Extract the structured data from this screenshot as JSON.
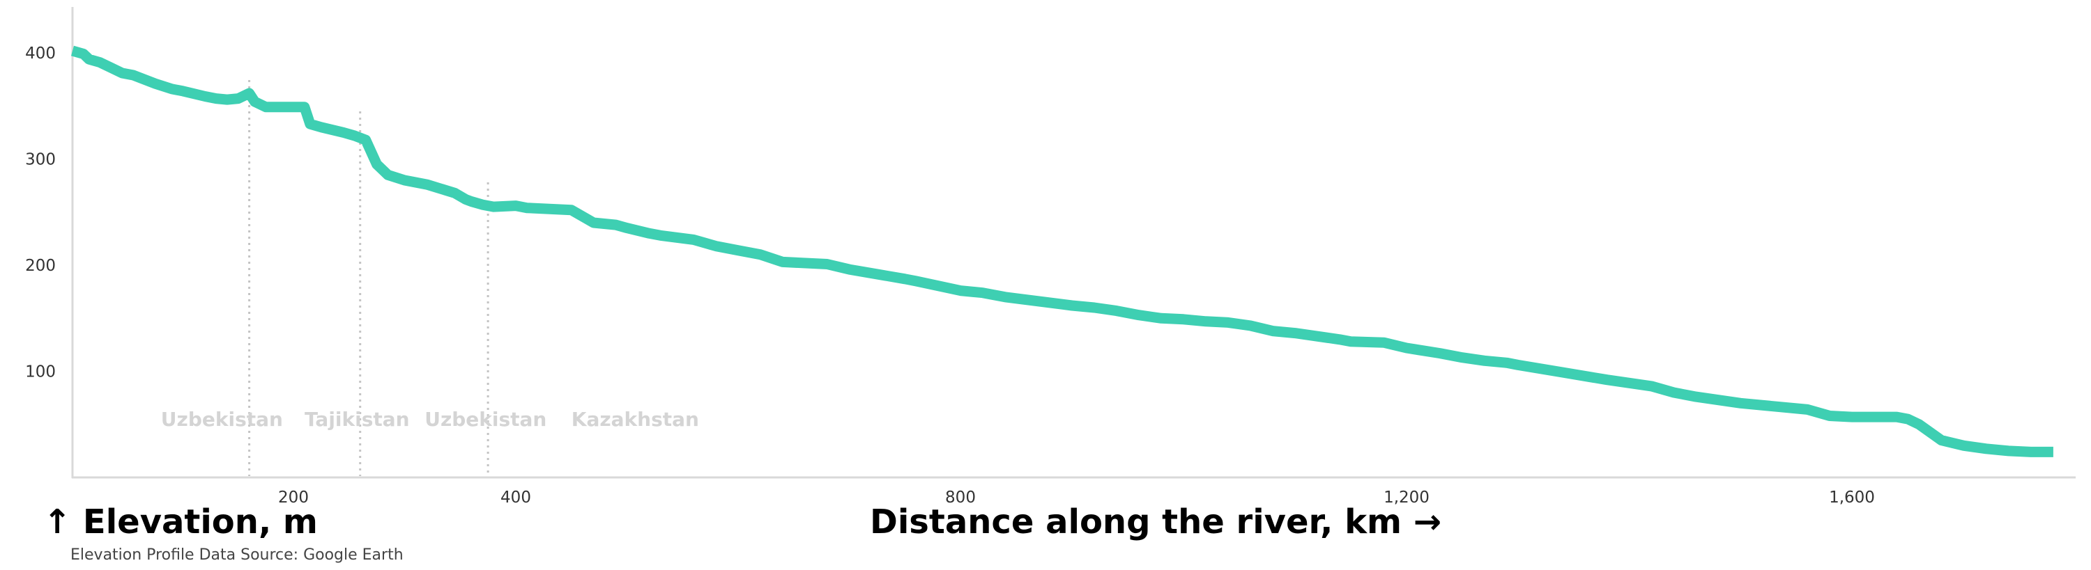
{
  "chart_data": {
    "type": "line",
    "xlabel": "Distance along the river, km →",
    "ylabel": "↑ Elevation, m",
    "source": "Elevation Profile Data Source: Google Earth",
    "xlim": [
      0,
      1800
    ],
    "ylim": [
      0,
      410
    ],
    "xticks": [
      {
        "value": 200,
        "label": "200"
      },
      {
        "value": 400,
        "label": "400"
      },
      {
        "value": 800,
        "label": "800"
      },
      {
        "value": 1200,
        "label": "1,200"
      },
      {
        "value": 1600,
        "label": "1,600"
      }
    ],
    "yticks": [
      {
        "value": 100,
        "label": "100"
      },
      {
        "value": 200,
        "label": "200"
      },
      {
        "value": 300,
        "label": "300"
      },
      {
        "value": 400,
        "label": "400"
      }
    ],
    "boundaries": [
      160,
      260,
      375
    ],
    "regions": [
      {
        "label": "Uzbekistan",
        "x": 80
      },
      {
        "label": "Tajikistan",
        "x": 210
      },
      {
        "label": "Uzbekistan",
        "x": 318
      },
      {
        "label": "Kazakhstan",
        "x": 450
      }
    ],
    "grid": false,
    "line_color": "#3ecfb2",
    "series": [
      {
        "x": [
          0,
          10,
          15,
          25,
          35,
          45,
          55,
          75,
          90,
          100,
          120,
          130,
          140,
          150,
          160,
          165,
          175,
          200,
          210,
          215,
          225,
          245,
          255,
          265,
          275,
          285,
          300,
          320,
          345,
          355,
          360,
          370,
          380,
          400,
          410,
          450,
          470,
          490,
          500,
          520,
          530,
          560,
          580,
          600,
          620,
          640,
          680,
          700,
          750,
          760,
          800,
          820,
          840,
          900,
          920,
          940,
          960,
          980,
          1000,
          1020,
          1040,
          1060,
          1080,
          1100,
          1140,
          1150,
          1180,
          1200,
          1230,
          1250,
          1270,
          1290,
          1300,
          1340,
          1380,
          1420,
          1440,
          1460,
          1500,
          1560,
          1580,
          1600,
          1620,
          1640,
          1650,
          1660,
          1680,
          1700,
          1720,
          1740,
          1760,
          1780
        ],
        "values": [
          402,
          399,
          394,
          391,
          386,
          381,
          379,
          371,
          366,
          364,
          359,
          357,
          356,
          357,
          362,
          354,
          349,
          349,
          349,
          333,
          330,
          325,
          322,
          318,
          295,
          285,
          280,
          276,
          268,
          262,
          260,
          257,
          255,
          256,
          254,
          252,
          240,
          238,
          235,
          230,
          228,
          224,
          218,
          214,
          210,
          203,
          201,
          196,
          187,
          185,
          176,
          174,
          170,
          162,
          160,
          157,
          153,
          150,
          149,
          147,
          146,
          143,
          138,
          136,
          130,
          128,
          127,
          122,
          117,
          113,
          110,
          108,
          106,
          99,
          92,
          86,
          80,
          76,
          70,
          64,
          58,
          57,
          57,
          57,
          55,
          50,
          35,
          30,
          27,
          25,
          24,
          24
        ]
      }
    ]
  }
}
